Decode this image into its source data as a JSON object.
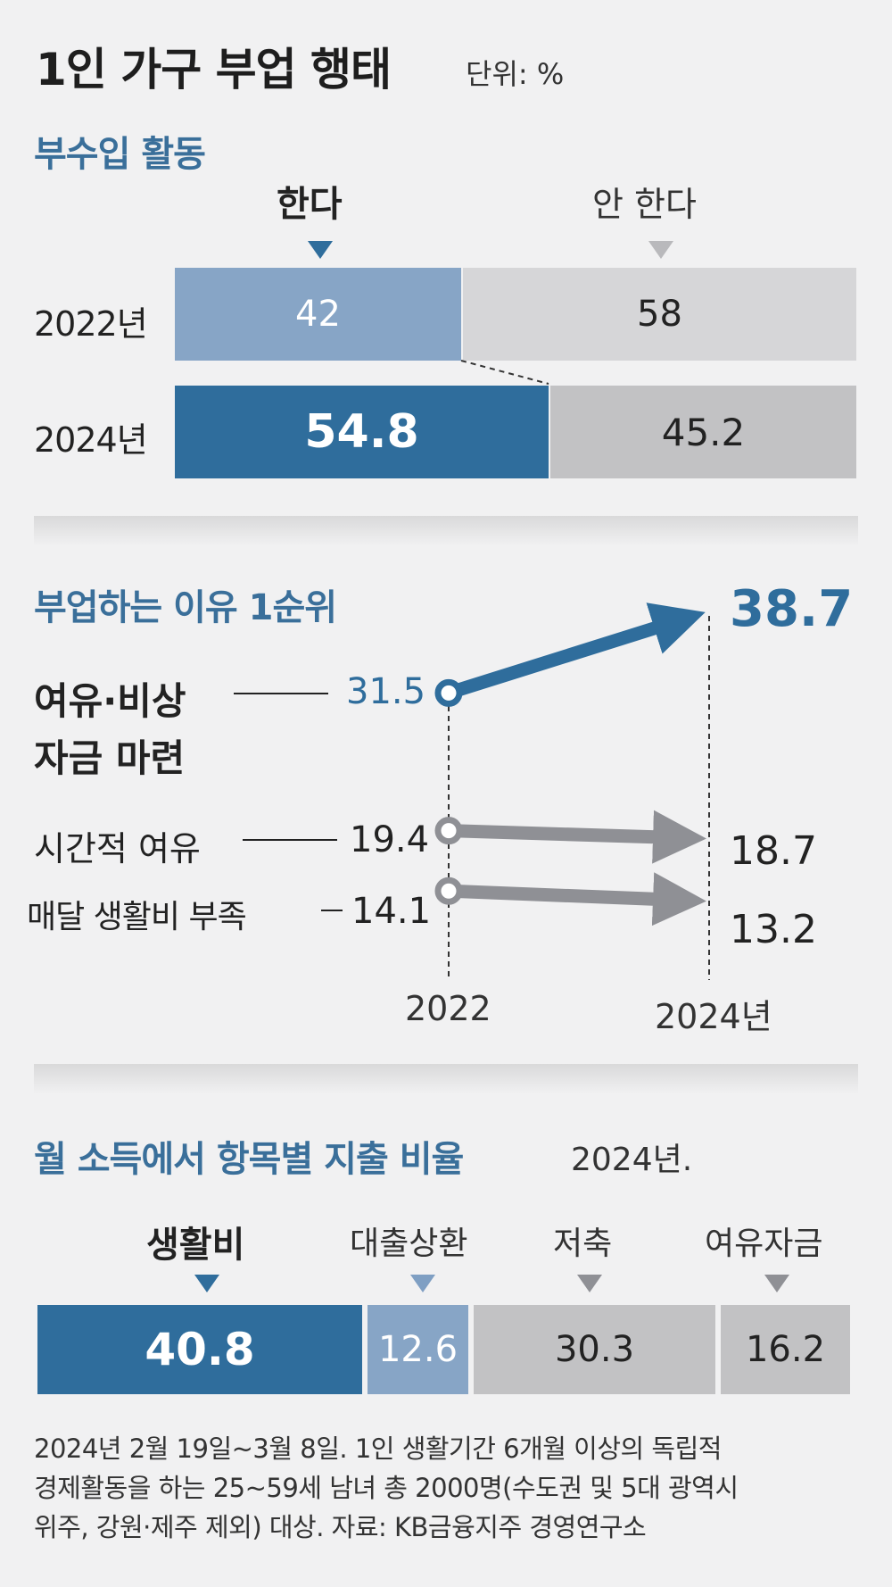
{
  "title": "1인 가구 부업 행태",
  "unit": "단위: %",
  "side_income": {
    "heading": "부수입 활동",
    "label_yes": "한다",
    "label_no": "안 한다",
    "rows": [
      {
        "year": "2022년",
        "yes": "42",
        "no": "58"
      },
      {
        "year": "2024년",
        "yes": "54.8",
        "no": "45.2"
      }
    ]
  },
  "reasons": {
    "heading": "부업하는 이유 1순위",
    "items": [
      {
        "label1": "여유·비상",
        "label2": "자금 마련",
        "v2022": "31.5",
        "v2024": "38.7"
      },
      {
        "label1": "시간적 여유",
        "v2022": "19.4",
        "v2024": "18.7"
      },
      {
        "label1": "매달 생활비 부족",
        "v2022": "14.1",
        "v2024": "13.2"
      }
    ],
    "x_start": "2022",
    "x_end": "2024년"
  },
  "spending": {
    "heading": "월 소득에서 항목별 지출 비율",
    "year": "2024년.",
    "items": [
      {
        "label": "생활비",
        "value": "40.8"
      },
      {
        "label": "대출상환",
        "value": "12.6"
      },
      {
        "label": "저축",
        "value": "30.3"
      },
      {
        "label": "여유자금",
        "value": "16.2"
      }
    ]
  },
  "note": [
    "2024년 2월 19일~3월 8일. 1인 생활기간 6개월 이상의 독립적",
    "경제활동을 하는 25~59세 남녀 총 2000명(수도권 및 5대 광역시",
    "위주, 강원·제주 제외) 대상. 자료: KB금융지주 경영연구소"
  ],
  "colors": {
    "dark": "#2f6d9c",
    "light": "#87a5c6",
    "grey_light": "#d6d6d8",
    "grey_mid": "#c2c2c4",
    "arrow_grey": "#8f9095"
  },
  "chart_data": [
    {
      "type": "bar",
      "title": "부수입 활동",
      "categories": [
        "2022년",
        "2024년"
      ],
      "series": [
        {
          "name": "한다",
          "values": [
            42,
            54.8
          ]
        },
        {
          "name": "안 한다",
          "values": [
            58,
            45.2
          ]
        }
      ]
    },
    {
      "type": "line",
      "title": "부업하는 이유 1순위",
      "x": [
        "2022",
        "2024년"
      ],
      "series": [
        {
          "name": "여유·비상 자금 마련",
          "values": [
            31.5,
            38.7
          ]
        },
        {
          "name": "시간적 여유",
          "values": [
            19.4,
            18.7
          ]
        },
        {
          "name": "매달 생활비 부족",
          "values": [
            14.1,
            13.2
          ]
        }
      ]
    },
    {
      "type": "bar",
      "title": "월 소득에서 항목별 지출 비율",
      "categories": [
        "생활비",
        "대출상환",
        "저축",
        "여유자금"
      ],
      "values": [
        40.8,
        12.6,
        30.3,
        16.2
      ]
    }
  ]
}
